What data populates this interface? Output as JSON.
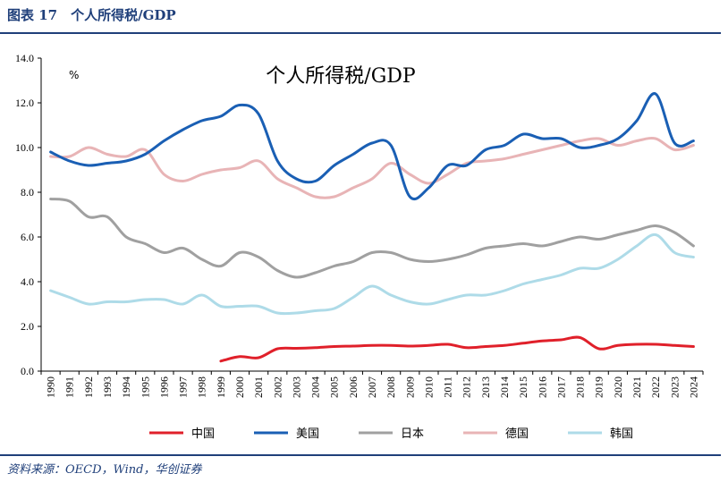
{
  "figure_title": "图表 17　个人所得税/GDP",
  "source": "资料来源：OECD，Wind，华创证券",
  "chart_data": {
    "type": "line",
    "title": "个人所得税/GDP",
    "ylabel": "%",
    "ylim": [
      0,
      14
    ],
    "yticks": [
      "0.0",
      "2.0",
      "4.0",
      "6.0",
      "8.0",
      "10.0",
      "12.0",
      "14.0"
    ],
    "x": [
      "1990",
      "1991",
      "1992",
      "1993",
      "1994",
      "1995",
      "1996",
      "1997",
      "1998",
      "1999",
      "2000",
      "2001",
      "2002",
      "2003",
      "2004",
      "2005",
      "2006",
      "2007",
      "2008",
      "2009",
      "2010",
      "2011",
      "2012",
      "2013",
      "2014",
      "2015",
      "2016",
      "2017",
      "2018",
      "2019",
      "2020",
      "2021",
      "2022",
      "2023",
      "2024"
    ],
    "grid": false,
    "legend_position": "bottom",
    "series": [
      {
        "name": "中国",
        "color": "#e0202a",
        "values": [
          null,
          null,
          null,
          null,
          null,
          null,
          null,
          null,
          null,
          0.45,
          0.65,
          0.6,
          1.0,
          1.02,
          1.05,
          1.1,
          1.12,
          1.15,
          1.15,
          1.12,
          1.15,
          1.2,
          1.05,
          1.1,
          1.15,
          1.25,
          1.35,
          1.4,
          1.5,
          1.0,
          1.15,
          1.2,
          1.2,
          1.15,
          1.1
        ]
      },
      {
        "name": "美国",
        "color": "#1a5fb4",
        "values": [
          9.8,
          9.4,
          9.2,
          9.3,
          9.4,
          9.7,
          10.3,
          10.8,
          11.2,
          11.4,
          11.9,
          11.5,
          9.4,
          8.6,
          8.5,
          9.2,
          9.7,
          10.2,
          10.1,
          7.8,
          8.2,
          9.2,
          9.2,
          9.9,
          10.1,
          10.6,
          10.4,
          10.4,
          10.0,
          10.1,
          10.4,
          11.2,
          12.4,
          10.2,
          10.3
        ]
      },
      {
        "name": "日本",
        "color": "#a0a0a0",
        "values": [
          7.7,
          7.6,
          6.9,
          6.9,
          6.0,
          5.7,
          5.3,
          5.5,
          5.0,
          4.7,
          5.3,
          5.1,
          4.5,
          4.2,
          4.4,
          4.7,
          4.9,
          5.3,
          5.3,
          5.0,
          4.9,
          5.0,
          5.2,
          5.5,
          5.6,
          5.7,
          5.6,
          5.8,
          6.0,
          5.9,
          6.1,
          6.3,
          6.5,
          6.2,
          5.6
        ]
      },
      {
        "name": "德国",
        "color": "#e8b4b6",
        "values": [
          9.6,
          9.6,
          10.0,
          9.7,
          9.6,
          9.9,
          8.8,
          8.5,
          8.8,
          9.0,
          9.1,
          9.4,
          8.6,
          8.2,
          7.8,
          7.8,
          8.2,
          8.6,
          9.3,
          8.8,
          8.4,
          8.8,
          9.3,
          9.4,
          9.5,
          9.7,
          9.9,
          10.1,
          10.3,
          10.4,
          10.1,
          10.3,
          10.4,
          9.9,
          10.1
        ]
      },
      {
        "name": "韩国",
        "color": "#aedbe8",
        "values": [
          3.6,
          3.3,
          3.0,
          3.1,
          3.1,
          3.2,
          3.2,
          3.0,
          3.4,
          2.9,
          2.9,
          2.9,
          2.6,
          2.6,
          2.7,
          2.8,
          3.3,
          3.8,
          3.4,
          3.1,
          3.0,
          3.2,
          3.4,
          3.4,
          3.6,
          3.9,
          4.1,
          4.3,
          4.6,
          4.6,
          5.0,
          5.6,
          6.1,
          5.3,
          5.1
        ]
      }
    ]
  }
}
